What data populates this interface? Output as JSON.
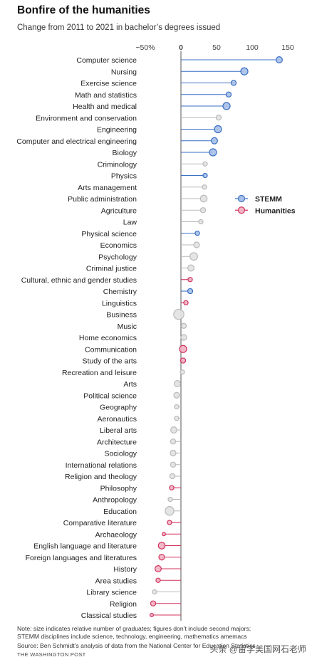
{
  "title": "Bonfire of the humanities",
  "subtitle": "Change from 2011 to 2021 in bachelor’s degrees issued",
  "note_line1": "Note: size indicates relative number of graduates; figures don’t include second majors;",
  "note_line2": "STEMM disciplines include science, technology, engineering, mathematics amemacs",
  "source": "Source: Ben Schmidt’s analysis of data from the National Center for Education Statistics",
  "credit": "THE WASHINGTON POST",
  "watermark": "头条 @留学美国网石老师",
  "colors": {
    "stemm_fill": "#a9c1e8",
    "stemm_stroke": "#3a6fc4",
    "humanities_fill": "#f2b4c4",
    "humanities_stroke": "#d0345e",
    "other_fill": "#e3e3e3",
    "other_stroke": "#b9b9b9"
  },
  "chart_data": {
    "type": "scatter",
    "title": "Bonfire of the humanities",
    "subtitle": "Change from 2011 to 2021 in bachelor’s degrees issued",
    "x_ticks": [
      -50,
      0,
      50,
      100,
      150
    ],
    "x_tick_labels": [
      "−50%",
      "0",
      "50",
      "100",
      "150"
    ],
    "xlim": [
      -60,
      150
    ],
    "legend": {
      "placement": "right",
      "items": [
        {
          "name": "STEMM",
          "group": "stemm"
        },
        {
          "name": "Humanities",
          "group": "humanities"
        }
      ]
    },
    "categories": [
      "Computer science",
      "Nursing",
      "Exercise science",
      "Math and statistics",
      "Health and medical",
      "Environment and conservation",
      "Engineering",
      "Computer and electrical engineering",
      "Biology",
      "Criminology",
      "Physics",
      "Arts management",
      "Public administration",
      "Agriculture",
      "Law",
      "Physical science",
      "Economics",
      "Psychology",
      "Criminal justice",
      "Cultural, ethnic and gender studies",
      "Chemistry",
      "Linguistics",
      "Business",
      "Music",
      "Home economics",
      "Communication",
      "Study of the arts",
      "Recreation and leisure",
      "Arts",
      "Political science",
      "Geography",
      "Aeronautics",
      "Liberal arts",
      "Architecture",
      "Sociology",
      "International relations",
      "Religion and theology",
      "Philosophy",
      "Anthropology",
      "Education",
      "Comparative literature",
      "Archaeology",
      "English language and literature",
      "Foreign languages and literatures",
      "History",
      "Area studies",
      "Library science",
      "Religion",
      "Classical studies"
    ],
    "values": [
      138,
      89,
      74,
      67,
      64,
      53,
      52,
      47,
      45,
      34,
      34,
      33,
      32,
      31,
      28,
      23,
      22,
      18,
      14,
      13,
      13,
      7,
      -3,
      4,
      4,
      3,
      3,
      2,
      -5,
      -6,
      -6,
      -6,
      -10,
      -11,
      -11,
      -11,
      -12,
      -13,
      -15,
      -16,
      -16,
      -24,
      -27,
      -27,
      -32,
      -32,
      -37,
      -39,
      -41
    ],
    "relative_size": [
      5,
      7,
      3,
      3,
      7,
      3,
      7,
      5,
      7,
      2,
      2,
      2,
      6,
      3,
      2,
      2,
      4,
      8,
      5,
      2,
      3,
      2,
      16,
      3,
      4,
      7,
      3,
      2,
      5,
      4,
      2,
      2,
      5,
      3,
      4,
      3,
      3,
      2,
      2,
      11,
      2,
      1,
      6,
      4,
      5,
      2,
      2,
      3,
      1
    ],
    "groups": [
      "stemm",
      "stemm",
      "stemm",
      "stemm",
      "stemm",
      "other",
      "stemm",
      "stemm",
      "stemm",
      "other",
      "stemm",
      "other",
      "other",
      "other",
      "other",
      "stemm",
      "other",
      "other",
      "other",
      "humanities",
      "stemm",
      "humanities",
      "other",
      "other",
      "other",
      "humanities",
      "humanities",
      "other",
      "other",
      "other",
      "other",
      "other",
      "other",
      "other",
      "other",
      "other",
      "other",
      "humanities",
      "other",
      "other",
      "humanities",
      "humanities",
      "humanities",
      "humanities",
      "humanities",
      "humanities",
      "other",
      "humanities",
      "humanities"
    ]
  }
}
